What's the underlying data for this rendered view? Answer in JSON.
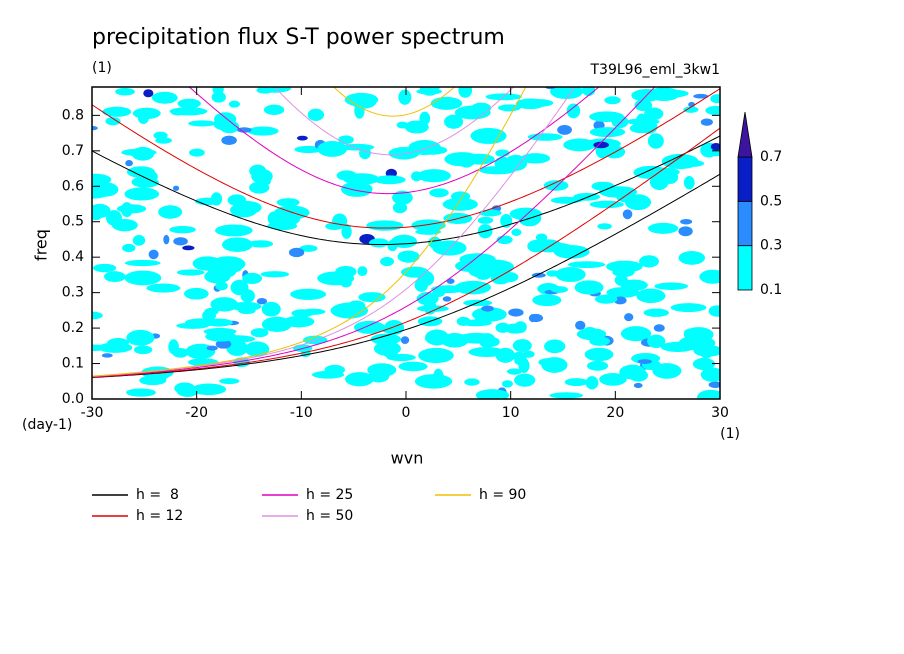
{
  "chart_data": {
    "type": "contour-dispersion",
    "title": "precipitation flux S-T power spectrum",
    "subtitle": "(1)",
    "annotation": "T39L96_eml_3kw1",
    "x_label": "wvn",
    "x_unit": "(1)",
    "y_label": "freq",
    "y_unit": "(day-1)",
    "xlim": [
      -30,
      30
    ],
    "xticks": [
      -30,
      -20,
      -10,
      0,
      10,
      20,
      30
    ],
    "ylim": [
      0,
      0.88
    ],
    "yticks": [
      {
        "value": 0,
        "label": "0.0"
      },
      0.1,
      0.2,
      0.3,
      0.4,
      0.5,
      0.6,
      0.7,
      0.8
    ],
    "levels": [
      0.1,
      0.3,
      0.5,
      0.7
    ],
    "level_colors": [
      "#00ffff",
      "#2a8cff",
      "#0a1ec8",
      "#3c14a0"
    ],
    "series": [
      {
        "name": "h =  8",
        "h": 8,
        "color": "#000000"
      },
      {
        "name": "h = 12",
        "h": 12,
        "color": "#e00000"
      },
      {
        "name": "h = 25",
        "h": 25,
        "color": "#e000c0"
      },
      {
        "name": "h = 50",
        "h": 50,
        "color": "#e090e0"
      },
      {
        "name": "h = 90",
        "h": 90,
        "color": "#f0c000"
      }
    ]
  }
}
